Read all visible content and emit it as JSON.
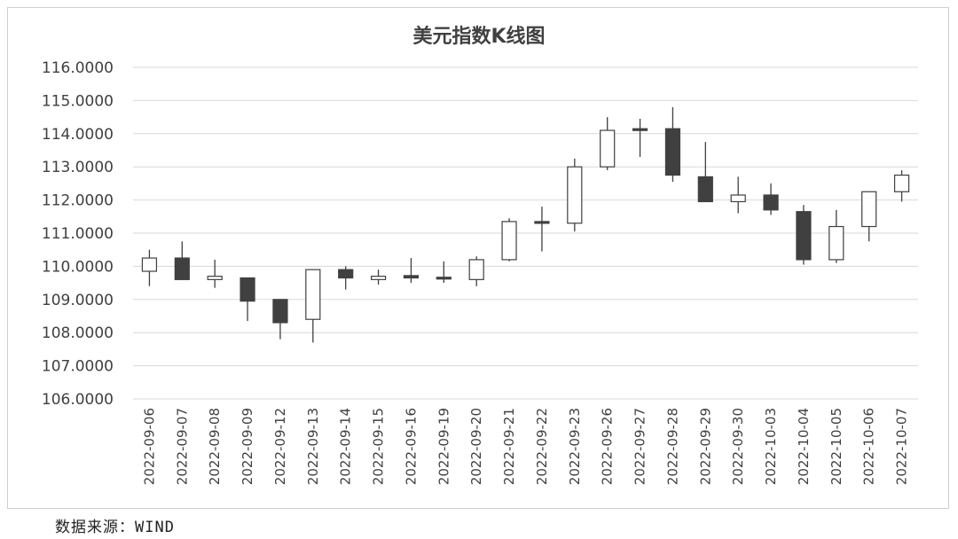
{
  "chart_data": {
    "type": "candlestick",
    "title": "美元指数K线图",
    "categories": [
      "2022-09-06",
      "2022-09-07",
      "2022-09-08",
      "2022-09-09",
      "2022-09-12",
      "2022-09-13",
      "2022-09-14",
      "2022-09-15",
      "2022-09-16",
      "2022-09-19",
      "2022-09-20",
      "2022-09-21",
      "2022-09-22",
      "2022-09-23",
      "2022-09-26",
      "2022-09-27",
      "2022-09-28",
      "2022-09-29",
      "2022-09-30",
      "2022-10-03",
      "2022-10-04",
      "2022-10-05",
      "2022-10-06",
      "2022-10-07"
    ],
    "series": [
      {
        "open": 109.85,
        "close": 110.25,
        "high": 110.5,
        "low": 109.4
      },
      {
        "open": 110.25,
        "close": 109.6,
        "high": 110.75,
        "low": 109.6
      },
      {
        "open": 109.6,
        "close": 109.7,
        "high": 110.2,
        "low": 109.35
      },
      {
        "open": 109.65,
        "close": 108.95,
        "high": 109.65,
        "low": 108.35
      },
      {
        "open": 109.0,
        "close": 108.3,
        "high": 109.0,
        "low": 107.8
      },
      {
        "open": 108.4,
        "close": 109.9,
        "high": 109.9,
        "low": 107.7
      },
      {
        "open": 109.9,
        "close": 109.65,
        "high": 110.0,
        "low": 109.3
      },
      {
        "open": 109.6,
        "close": 109.7,
        "high": 109.9,
        "low": 109.45
      },
      {
        "open": 109.72,
        "close": 109.65,
        "high": 110.25,
        "low": 109.5
      },
      {
        "open": 109.67,
        "close": 109.62,
        "high": 110.15,
        "low": 109.5
      },
      {
        "open": 109.6,
        "close": 110.2,
        "high": 110.3,
        "low": 109.4
      },
      {
        "open": 110.2,
        "close": 111.35,
        "high": 111.45,
        "low": 110.15
      },
      {
        "open": 111.35,
        "close": 111.3,
        "high": 111.8,
        "low": 110.45
      },
      {
        "open": 111.3,
        "close": 113.0,
        "high": 113.25,
        "low": 111.05
      },
      {
        "open": 113.0,
        "close": 114.1,
        "high": 114.5,
        "low": 112.9
      },
      {
        "open": 114.15,
        "close": 114.1,
        "high": 114.45,
        "low": 113.3
      },
      {
        "open": 114.15,
        "close": 112.75,
        "high": 114.8,
        "low": 112.55
      },
      {
        "open": 112.7,
        "close": 111.95,
        "high": 113.75,
        "low": 111.95
      },
      {
        "open": 111.95,
        "close": 112.15,
        "high": 112.7,
        "low": 111.6
      },
      {
        "open": 112.15,
        "close": 111.7,
        "high": 112.5,
        "low": 111.55
      },
      {
        "open": 111.65,
        "close": 110.2,
        "high": 111.85,
        "low": 110.05
      },
      {
        "open": 110.2,
        "close": 111.2,
        "high": 111.7,
        "low": 110.1
      },
      {
        "open": 111.2,
        "close": 112.25,
        "high": 112.25,
        "low": 110.75
      },
      {
        "open": 112.25,
        "close": 112.75,
        "high": 112.9,
        "low": 111.95
      }
    ],
    "ylim": [
      106,
      116
    ],
    "yticks": [
      "106.0000",
      "107.0000",
      "108.0000",
      "109.0000",
      "110.0000",
      "111.0000",
      "112.0000",
      "113.0000",
      "114.0000",
      "115.0000",
      "116.0000"
    ],
    "grid": true,
    "colors": {
      "up_fill": "#ffffff",
      "down_fill": "#404040",
      "stroke": "#404040",
      "grid": "#d9d9d9"
    }
  },
  "source_note": "数据来源：WIND"
}
